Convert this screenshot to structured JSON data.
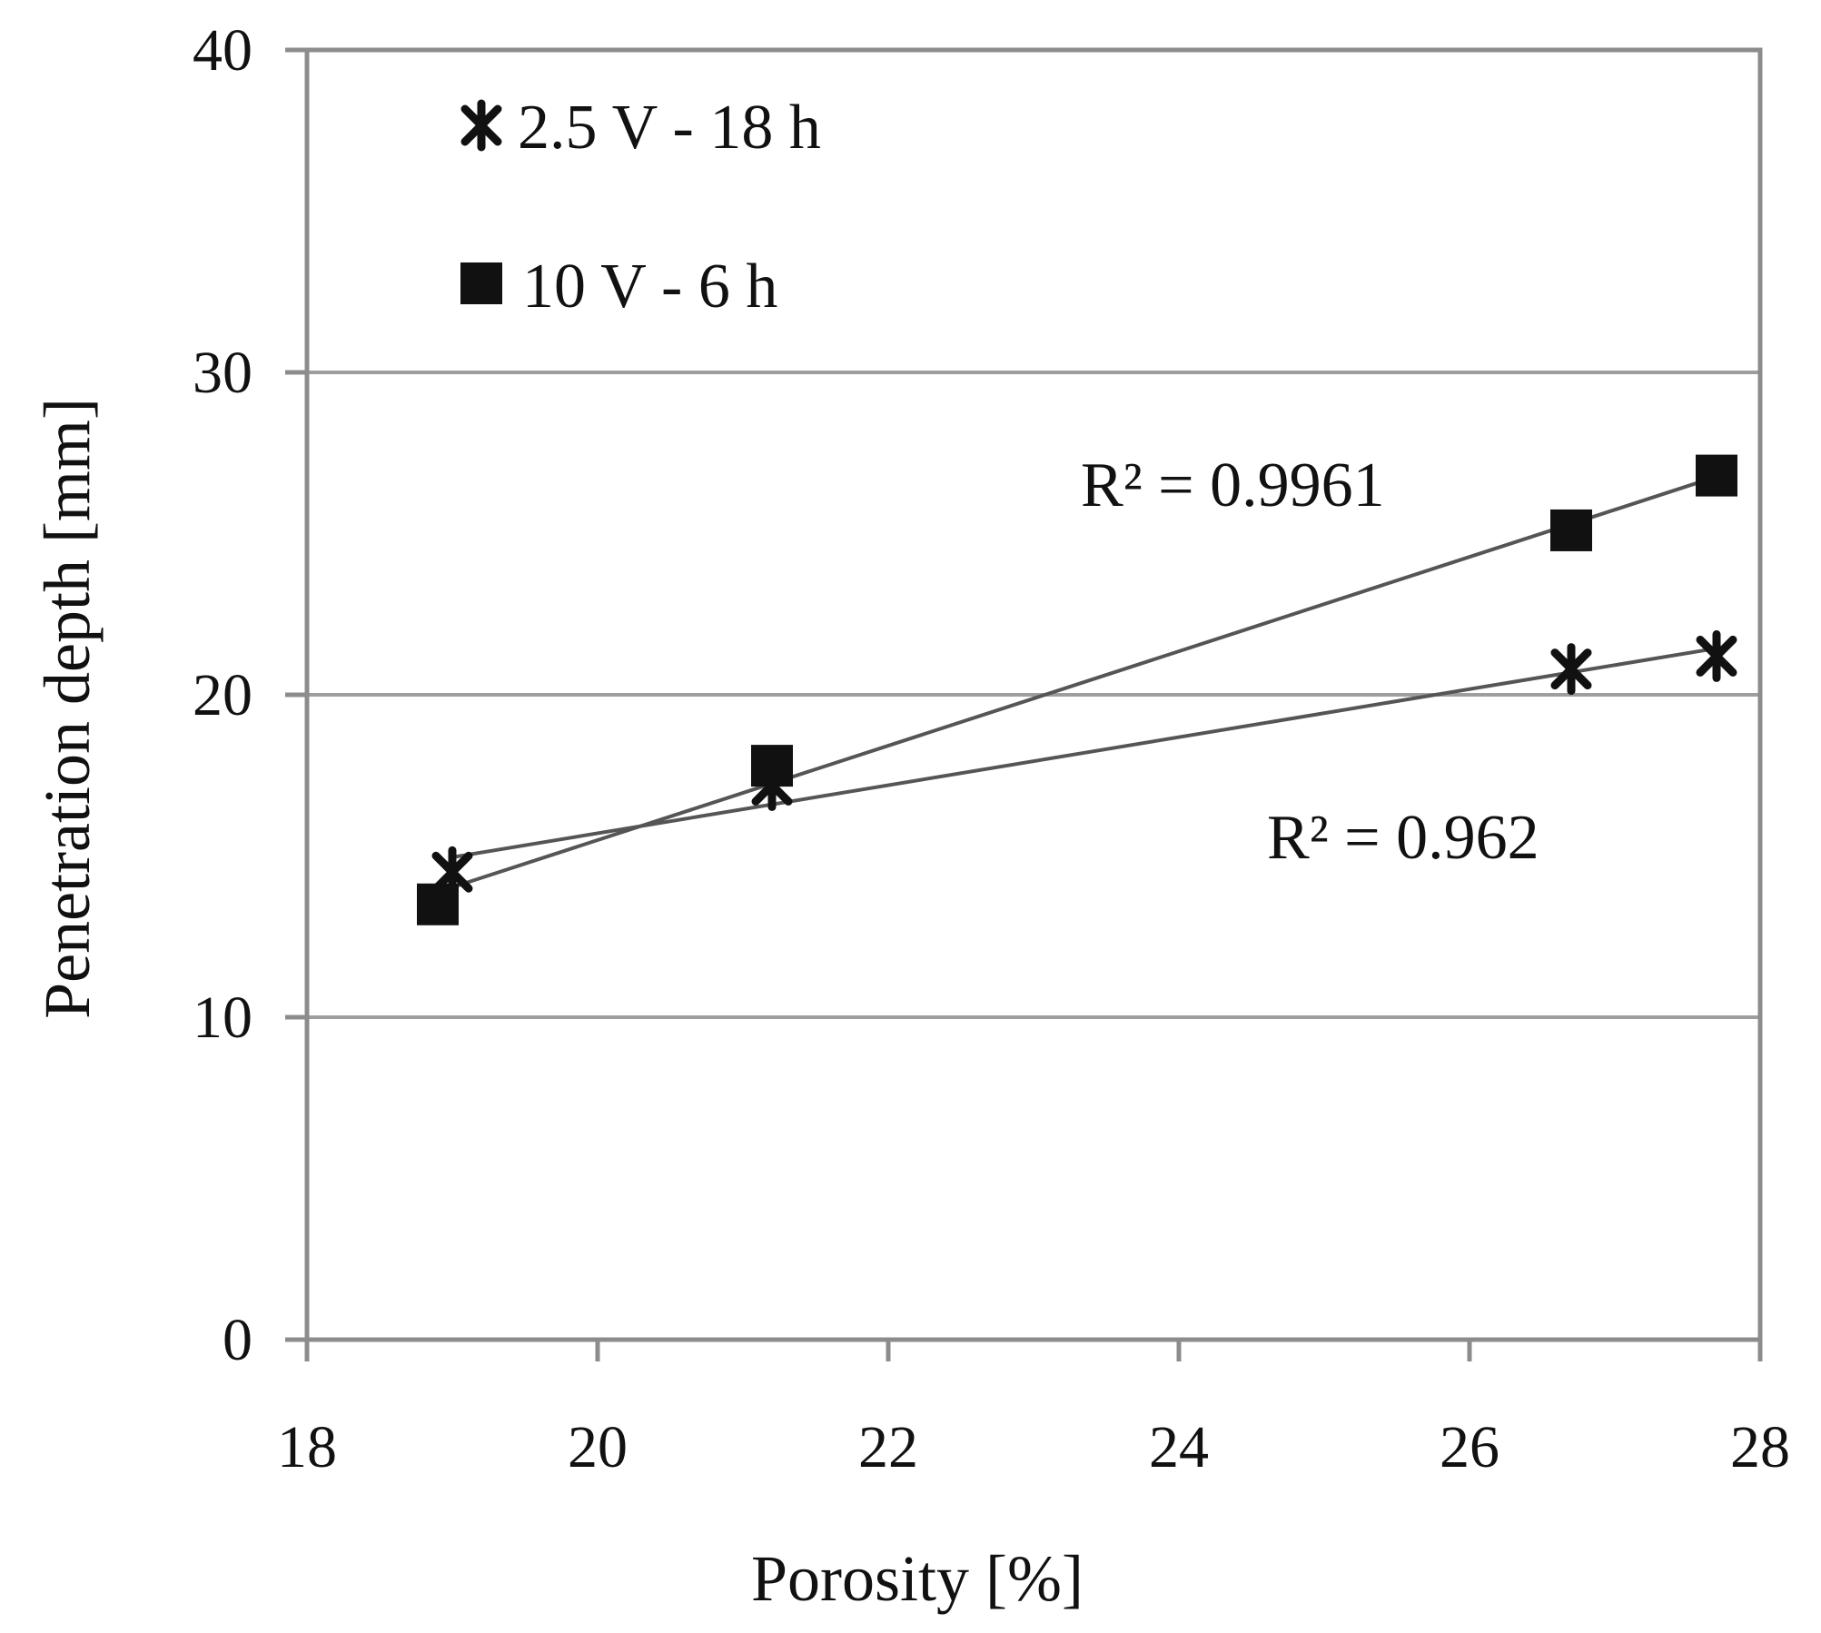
{
  "chart_data": {
    "type": "scatter",
    "title": "",
    "xlabel": "Porosity [%]",
    "ylabel": "Penetration depth [mm]",
    "xlim": [
      18,
      28
    ],
    "ylim": [
      0,
      40
    ],
    "x_ticks": [
      "18",
      "20",
      "22",
      "24",
      "26",
      "28"
    ],
    "y_ticks": [
      "0",
      "10",
      "20",
      "30",
      "40"
    ],
    "grid": "horizontal",
    "legend_position": "top-left",
    "series": [
      {
        "name": "2.5 V - 18 h",
        "marker": "asterisk",
        "x": [
          19.0,
          21.2,
          26.7,
          27.7
        ],
        "y": [
          14.5,
          17.2,
          20.8,
          21.2
        ],
        "trendline": {
          "type": "linear",
          "r2_label": "R² = 0.962"
        }
      },
      {
        "name": "10 V - 6 h",
        "marker": "square",
        "x": [
          18.9,
          21.2,
          26.7,
          27.7
        ],
        "y": [
          13.5,
          17.8,
          25.1,
          26.8
        ],
        "trendline": {
          "type": "linear",
          "r2_label": "R² = 0.9961"
        }
      }
    ]
  }
}
